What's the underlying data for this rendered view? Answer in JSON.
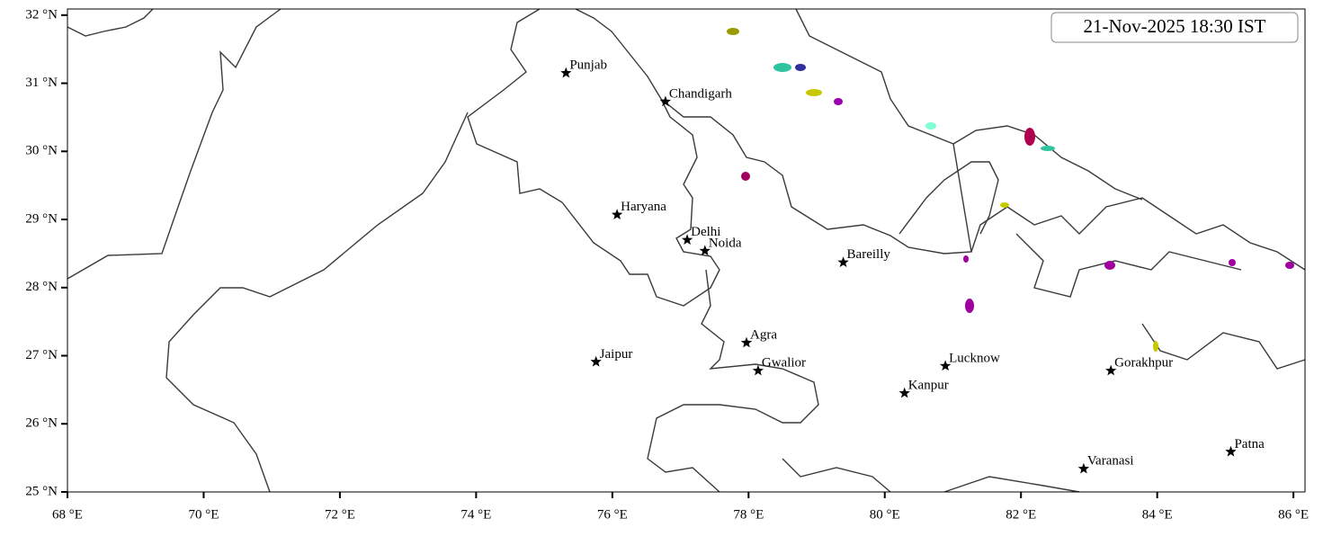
{
  "chart_data": {
    "type": "map",
    "title": "21-Nov-2025 18:30 IST",
    "xlim": [
      68,
      86.17
    ],
    "ylim": [
      25,
      32.09
    ],
    "xticks": [
      {
        "value": 68,
        "label": "68 °E"
      },
      {
        "value": 70,
        "label": "70 °E"
      },
      {
        "value": 72,
        "label": "72 °E"
      },
      {
        "value": 74,
        "label": "74 °E"
      },
      {
        "value": 76,
        "label": "76 °E"
      },
      {
        "value": 78,
        "label": "78 °E"
      },
      {
        "value": 80,
        "label": "80 °E"
      },
      {
        "value": 82,
        "label": "82 °E"
      },
      {
        "value": 84,
        "label": "84 °E"
      },
      {
        "value": 86,
        "label": "86 °E"
      }
    ],
    "yticks": [
      {
        "value": 25,
        "label": "25 °N"
      },
      {
        "value": 26,
        "label": "26 °N"
      },
      {
        "value": 27,
        "label": "27 °N"
      },
      {
        "value": 28,
        "label": "28 °N"
      },
      {
        "value": 29,
        "label": "29 °N"
      },
      {
        "value": 30,
        "label": "30 °N"
      },
      {
        "value": 31,
        "label": "31 °N"
      },
      {
        "value": 32,
        "label": "32 °N"
      }
    ],
    "points": [
      {
        "name": "Punjab",
        "lon": 75.32,
        "lat": 31.15
      },
      {
        "name": "Chandigarh",
        "lon": 76.78,
        "lat": 30.73
      },
      {
        "name": "Haryana",
        "lon": 76.07,
        "lat": 29.07
      },
      {
        "name": "Delhi",
        "lon": 77.1,
        "lat": 28.7
      },
      {
        "name": "Noida",
        "lon": 77.36,
        "lat": 28.54
      },
      {
        "name": "Bareilly",
        "lon": 79.39,
        "lat": 28.37
      },
      {
        "name": "Agra",
        "lon": 77.97,
        "lat": 27.19
      },
      {
        "name": "Jaipur",
        "lon": 75.76,
        "lat": 26.91
      },
      {
        "name": "Gwalior",
        "lon": 78.14,
        "lat": 26.78
      },
      {
        "name": "Lucknow",
        "lon": 80.89,
        "lat": 26.85
      },
      {
        "name": "Kanpur",
        "lon": 80.29,
        "lat": 26.45
      },
      {
        "name": "Gorakhpur",
        "lon": 83.32,
        "lat": 26.78
      },
      {
        "name": "Varanasi",
        "lon": 82.92,
        "lat": 25.34
      },
      {
        "name": "Patna",
        "lon": 85.08,
        "lat": 25.59
      }
    ]
  }
}
